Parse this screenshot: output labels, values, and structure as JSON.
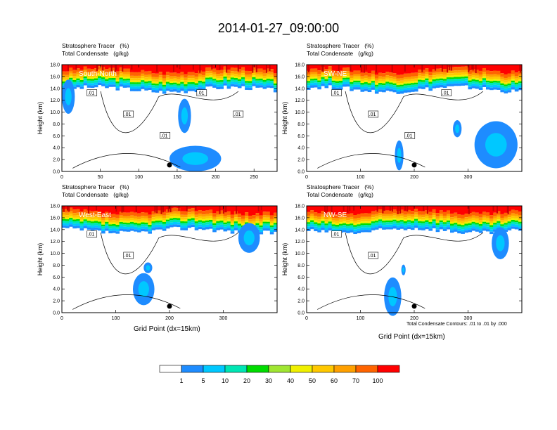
{
  "title": "2014-01-27_09:00:00",
  "footnote": "Total Condensate Contours: .01 to .01 by .000",
  "colorbar": {
    "levels": [
      "1",
      "5",
      "10",
      "20",
      "30",
      "40",
      "50",
      "60",
      "70",
      "100"
    ],
    "colors": [
      "#ffffff",
      "#1e8cff",
      "#00c8ff",
      "#00e6b4",
      "#00dc00",
      "#a0e632",
      "#f0f000",
      "#ffc800",
      "#ffa000",
      "#ff6400",
      "#ff0000"
    ]
  },
  "chart_data": [
    {
      "type": "heatmap",
      "subtitle_lines": [
        "Stratosphere Tracer   (%)",
        "Total Condensate   (g/kg)"
      ],
      "panel_label": "South-North",
      "ylabel": "Height (km)",
      "xlabel": "",
      "xticks": [
        0,
        50,
        100,
        150,
        200,
        250
      ],
      "xlim": [
        0,
        280
      ],
      "yticks": [
        "0.0",
        "2.0",
        "4.0",
        "6.0",
        "8.0",
        "10.0",
        "12.0",
        "14.0",
        "16.0",
        "18.0"
      ],
      "ylim": [
        0,
        18
      ],
      "contour_labels": [
        ".01",
        ".01",
        ".01",
        ".01",
        ".01"
      ],
      "tropopause_km_approx": 15.5
    },
    {
      "type": "heatmap",
      "subtitle_lines": [
        "Stratosphere Tracer   (%)",
        "Total Condensate   (g/kg)"
      ],
      "panel_label": "SW-NE",
      "ylabel": "Height (km)",
      "xlabel": "",
      "xticks": [
        0,
        100,
        200,
        300
      ],
      "xlim": [
        0,
        400
      ],
      "yticks": [
        "0.0",
        "2.0",
        "4.0",
        "6.0",
        "8.0",
        "10.0",
        "12.0",
        "14.0",
        "16.0",
        "18.0"
      ],
      "ylim": [
        0,
        18
      ],
      "contour_labels": [
        ".01",
        ".01",
        ".01",
        ".01"
      ],
      "tropopause_km_approx": 15.5
    },
    {
      "type": "heatmap",
      "subtitle_lines": [
        "Stratosphere Tracer   (%)",
        "Total Condensate   (g/kg)"
      ],
      "panel_label": "West-East",
      "ylabel": "Height (km)",
      "xlabel": "Grid Point (dx=15km)",
      "xticks": [
        0,
        100,
        200,
        300
      ],
      "xlim": [
        0,
        400
      ],
      "yticks": [
        "0.0",
        "2.0",
        "4.0",
        "6.0",
        "8.0",
        "10.0",
        "12.0",
        "14.0",
        "16.0",
        "18.0"
      ],
      "ylim": [
        0,
        18
      ],
      "contour_labels": [
        ".01",
        ".01"
      ],
      "tropopause_km_approx": 15.5
    },
    {
      "type": "heatmap",
      "subtitle_lines": [
        "Stratosphere Tracer   (%)",
        "Total Condensate   (g/kg)"
      ],
      "panel_label": "NW-SE",
      "ylabel": "Height (km)",
      "xlabel": "Grid Point (dx=15km)",
      "xticks": [
        0,
        100,
        200,
        300
      ],
      "xlim": [
        0,
        400
      ],
      "yticks": [
        "0.0",
        "2.0",
        "4.0",
        "6.0",
        "8.0",
        "10.0",
        "12.0",
        "14.0",
        "16.0",
        "18.0"
      ],
      "ylim": [
        0,
        18
      ],
      "contour_labels": [
        ".01",
        ".01"
      ],
      "tropopause_km_approx": 15.5
    }
  ]
}
